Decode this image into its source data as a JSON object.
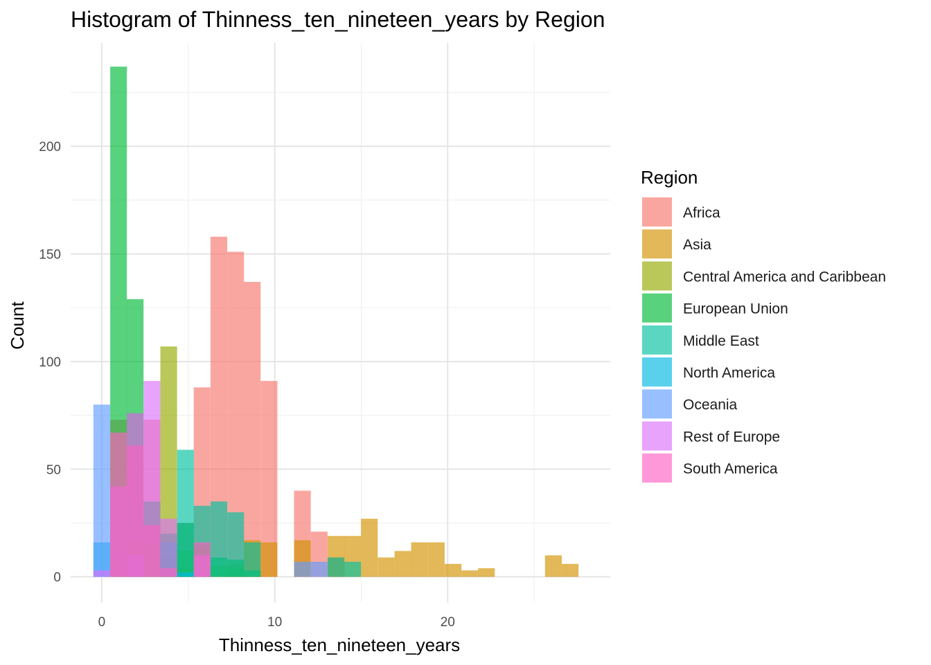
{
  "chart_data": {
    "type": "histogram",
    "title": "Histogram of Thinness_ten_nineteen_years by Region",
    "xlabel": "Thinness_ten_nineteen_years",
    "ylabel": "Count",
    "xlim": [
      -1.8,
      29.4
    ],
    "ylim": [
      -12,
      248
    ],
    "x_ticks": [
      0,
      10,
      20
    ],
    "y_ticks": [
      0,
      50,
      100,
      150,
      200
    ],
    "bin_width": 0.967,
    "grid": true,
    "legend": {
      "title": "Region",
      "position": "right"
    },
    "series": [
      {
        "name": "Africa",
        "color": "#F8766D",
        "bins": [
          [
            0.97,
            73
          ],
          [
            1.93,
            76
          ],
          [
            2.9,
            73
          ],
          [
            3.87,
            10
          ],
          [
            4.84,
            25
          ],
          [
            5.8,
            88
          ],
          [
            6.77,
            158
          ],
          [
            7.74,
            151
          ],
          [
            8.7,
            137
          ],
          [
            9.67,
            91
          ],
          [
            11.6,
            40
          ],
          [
            12.57,
            21
          ],
          [
            13.54,
            9
          ]
        ]
      },
      {
        "name": "Asia",
        "color": "#D39200",
        "bins": [
          [
            1.93,
            16
          ],
          [
            3.87,
            10
          ],
          [
            4.84,
            4
          ],
          [
            5.8,
            15
          ],
          [
            7.74,
            6
          ],
          [
            8.7,
            17
          ],
          [
            9.67,
            16
          ],
          [
            11.6,
            17
          ],
          [
            13.54,
            19
          ],
          [
            14.5,
            19
          ],
          [
            15.47,
            27
          ],
          [
            16.44,
            9
          ],
          [
            17.41,
            12
          ],
          [
            18.37,
            16
          ],
          [
            19.34,
            16
          ],
          [
            20.31,
            6
          ],
          [
            21.28,
            3
          ],
          [
            22.24,
            4
          ],
          [
            26.11,
            10
          ],
          [
            27.08,
            6
          ]
        ]
      },
      {
        "name": "Central America and Caribbean",
        "color": "#93AA00",
        "bins": [
          [
            2.9,
            15
          ],
          [
            3.87,
            107
          ],
          [
            4.84,
            12
          ],
          [
            6.77,
            5
          ],
          [
            7.74,
            4
          ]
        ]
      },
      {
        "name": "European Union",
        "color": "#00BA38",
        "bins": [
          [
            0.97,
            237
          ],
          [
            1.93,
            129
          ],
          [
            2.9,
            35
          ],
          [
            3.87,
            20
          ],
          [
            4.84,
            25
          ],
          [
            6.77,
            9
          ],
          [
            7.74,
            8
          ],
          [
            8.7,
            3
          ]
        ]
      },
      {
        "name": "Middle East",
        "color": "#00C19F",
        "bins": [
          [
            3.87,
            16
          ],
          [
            4.84,
            59
          ],
          [
            5.8,
            33
          ],
          [
            6.77,
            35
          ],
          [
            7.74,
            30
          ],
          [
            8.7,
            16
          ],
          [
            13.54,
            9
          ],
          [
            14.5,
            7
          ]
        ]
      },
      {
        "name": "North America",
        "color": "#00B9E3",
        "bins": [
          [
            0,
            16
          ],
          [
            4.84,
            2
          ]
        ]
      },
      {
        "name": "Oceania",
        "color": "#619CFF",
        "bins": [
          [
            0,
            80
          ],
          [
            1.93,
            10
          ],
          [
            11.6,
            7
          ],
          [
            12.57,
            7
          ]
        ]
      },
      {
        "name": "Rest of Europe",
        "color": "#DB72FB",
        "bins": [
          [
            0,
            3
          ],
          [
            0.97,
            42
          ],
          [
            1.93,
            76
          ],
          [
            2.9,
            91
          ],
          [
            3.87,
            27
          ],
          [
            5.8,
            10
          ]
        ]
      },
      {
        "name": "South America",
        "color": "#FF61C3",
        "bins": [
          [
            0.97,
            67
          ],
          [
            1.93,
            61
          ],
          [
            2.9,
            24
          ],
          [
            3.87,
            4
          ],
          [
            5.8,
            16
          ]
        ]
      }
    ]
  }
}
